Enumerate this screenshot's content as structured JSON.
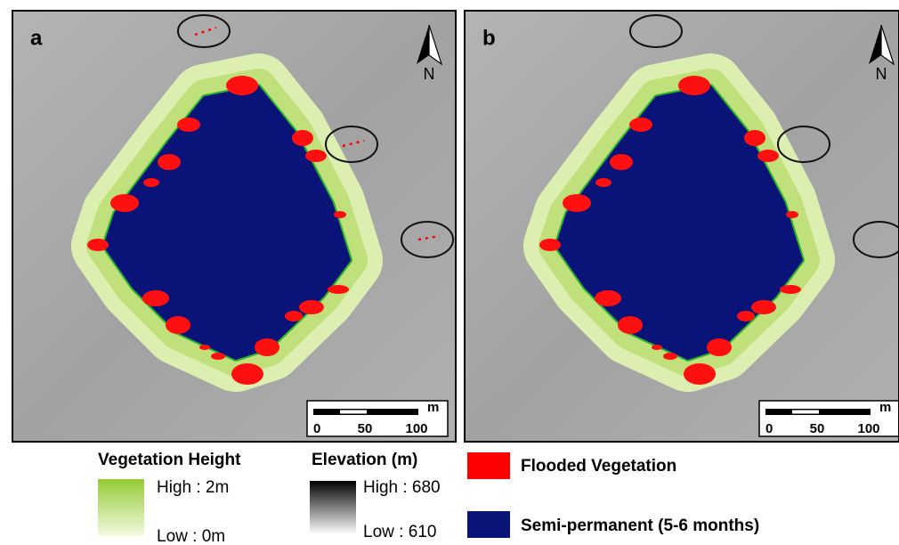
{
  "panels": [
    {
      "label": "a",
      "north": "N",
      "scale_unit": "m",
      "scale_labels": [
        "0",
        "50",
        "100"
      ]
    },
    {
      "label": "b",
      "north": "N",
      "scale_unit": "m",
      "scale_labels": [
        "0",
        "50",
        "100"
      ]
    }
  ],
  "legend": {
    "vegetation": {
      "title": "Vegetation Height",
      "high": "High : 2m",
      "low": "Low : 0m"
    },
    "elevation": {
      "title": "Elevation (m)",
      "high": "High : 680",
      "low": "Low : 610"
    },
    "flooded": "Flooded Vegetation",
    "semi_permanent": "Semi-permanent (5-6 months)"
  }
}
